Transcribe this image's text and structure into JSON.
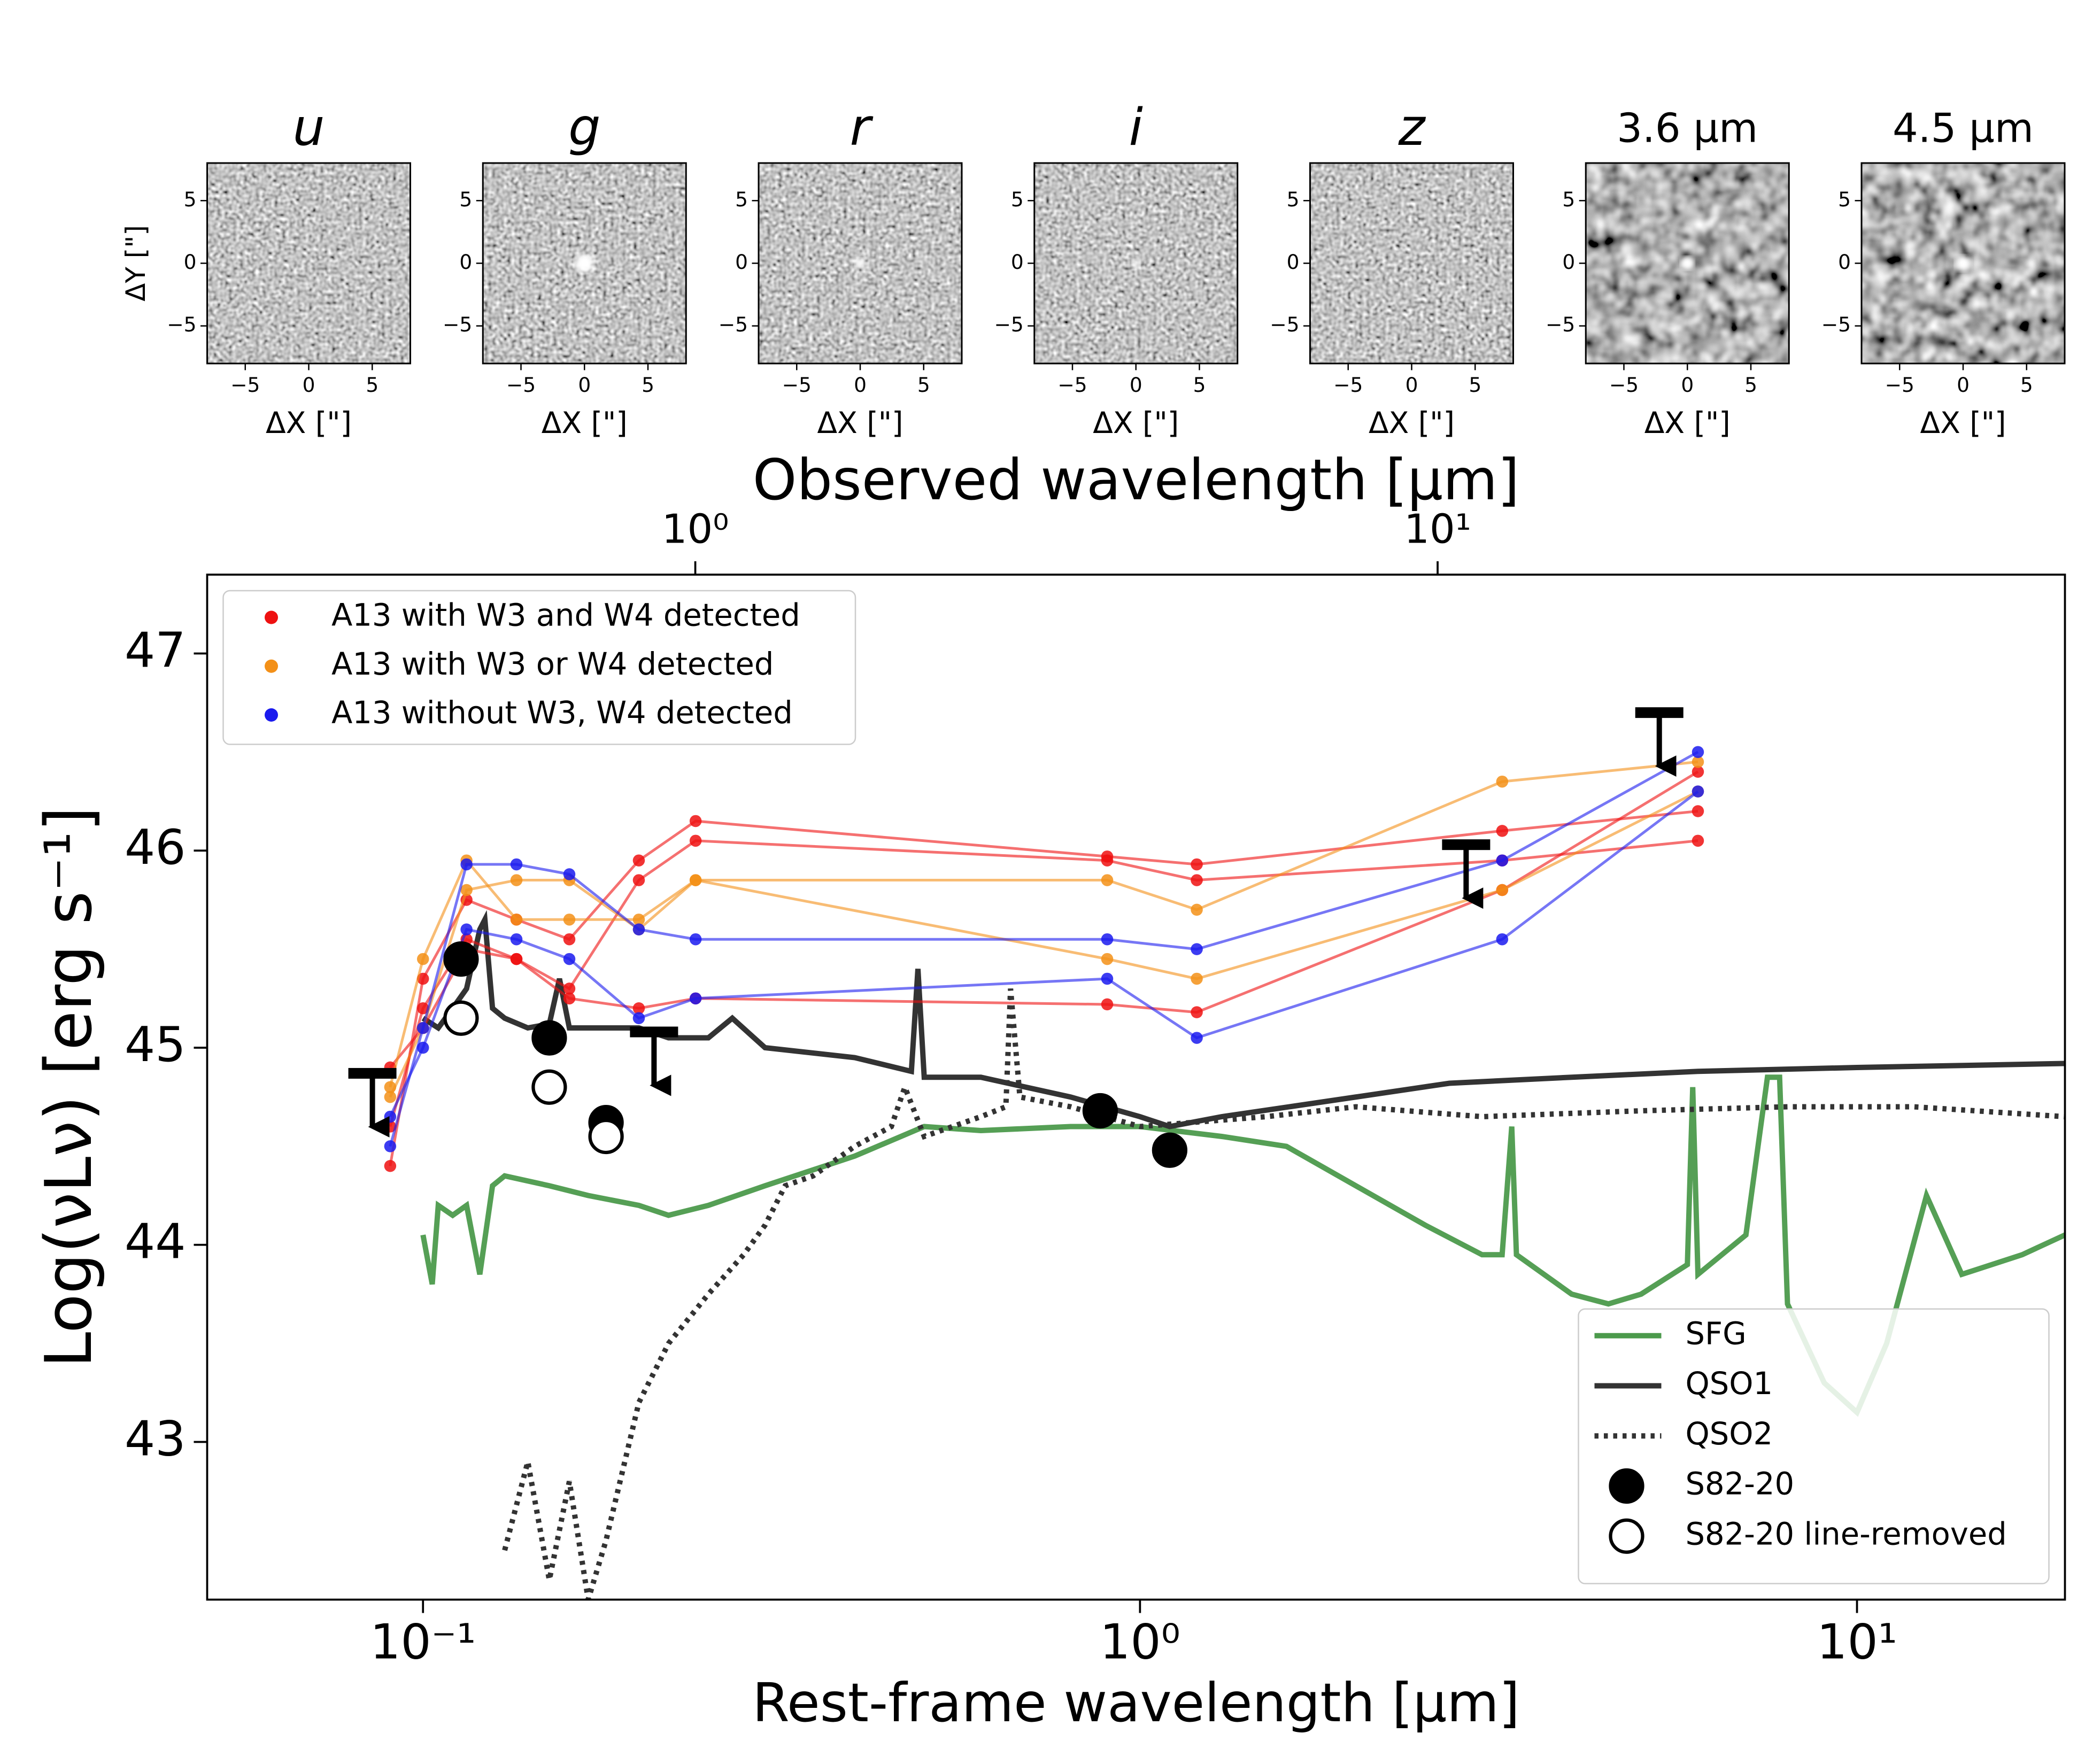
{
  "cutouts": {
    "titles": [
      "u",
      "g",
      "r",
      "i",
      "z",
      "3.6 μm",
      "4.5 μm"
    ],
    "xlabel": "ΔX [\"]",
    "ylabel": "ΔY [\"]",
    "xlim": [
      -8,
      8
    ],
    "ylim": [
      -8,
      8
    ],
    "xticks": [
      {
        "value": -5,
        "label": "−5"
      },
      0,
      5
    ],
    "yticks": [
      {
        "value": -5,
        "label": "−5"
      },
      0,
      5
    ]
  },
  "chart_data": {
    "type": "line",
    "xscale": "log",
    "xlabel": "Rest-frame wavelength [μm]",
    "x2label": "Observed wavelength [μm]",
    "ylabel": "Log(νLν) [erg s⁻¹]",
    "xlim": [
      0.05,
      19.5
    ],
    "x2lim": [
      0.22,
      70
    ],
    "ylim": [
      42.2,
      47.4
    ],
    "xticks": [
      {
        "value": 0.1,
        "label": "10⁻¹"
      },
      {
        "value": 1,
        "label": "10⁰"
      },
      {
        "value": 10,
        "label": "10¹"
      }
    ],
    "x2ticks": [
      {
        "value": 1,
        "label": "10⁰"
      },
      {
        "value": 10,
        "label": "10¹"
      }
    ],
    "yticks": [
      43,
      44,
      45,
      46,
      47
    ],
    "legend": "upper left",
    "model_legend": "lower right",
    "group_x": [
      0.09,
      0.1,
      0.115,
      0.135,
      0.16,
      0.2,
      0.24,
      0.9,
      1.2,
      3.2,
      6
    ],
    "groups": [
      {
        "name": "A13 with W3 and W4 detected",
        "color": "#ee1111",
        "objects": [
          {
            "values": [
              44.4,
              45.35,
              45.75,
              45.65,
              45.55,
              45.95,
              46.15,
              45.97,
              45.93,
              46.1,
              46.2
            ]
          },
          {
            "values": [
              44.6,
              45.2,
              45.55,
              45.45,
              45.3,
              45.85,
              46.05,
              45.95,
              45.85,
              45.95,
              46.05
            ]
          },
          {
            "values": [
              44.9,
              45.1,
              45.5,
              45.45,
              45.25,
              45.2,
              45.25,
              45.22,
              45.18,
              45.8,
              46.4
            ]
          }
        ]
      },
      {
        "name": "A13 with W3 or W4 detected",
        "color": "#f39018",
        "objects": [
          {
            "values": [
              44.8,
              45.45,
              45.95,
              45.65,
              45.65,
              45.65,
              45.85,
              45.85,
              45.7,
              46.35,
              46.45
            ]
          },
          {
            "values": [
              44.75,
              45.1,
              45.8,
              45.85,
              45.85,
              45.6,
              45.85,
              45.45,
              45.35,
              45.8,
              46.3
            ]
          }
        ]
      },
      {
        "name": "A13 without W3, W4 detected",
        "color": "#1a1aee",
        "objects": [
          {
            "values": [
              44.5,
              45.1,
              45.93,
              45.93,
              45.88,
              45.6,
              45.55,
              45.55,
              45.5,
              45.95,
              46.5
            ]
          },
          {
            "values": [
              44.65,
              45.0,
              45.6,
              45.55,
              45.45,
              45.15,
              45.25,
              45.35,
              45.05,
              45.55,
              46.3
            ]
          }
        ]
      }
    ],
    "series": [
      {
        "name": "SFG",
        "color": "#4c9a4c",
        "style": "solid",
        "x": [
          0.1,
          0.103,
          0.105,
          0.11,
          0.115,
          0.12,
          0.125,
          0.13,
          0.15,
          0.17,
          0.2,
          0.22,
          0.25,
          0.3,
          0.4,
          0.5,
          0.6,
          0.8,
          1.0,
          1.3,
          1.6,
          2.0,
          2.5,
          3.0,
          3.2,
          3.3,
          3.35,
          4,
          4.5,
          5,
          5.8,
          5.9,
          6.0,
          7,
          7.5,
          7.8,
          8.0,
          9,
          10,
          11,
          12.5,
          14,
          17,
          19.5
        ],
        "y": [
          44.05,
          43.8,
          44.2,
          44.15,
          44.2,
          43.85,
          44.3,
          44.35,
          44.3,
          44.25,
          44.2,
          44.15,
          44.2,
          44.3,
          44.45,
          44.6,
          44.58,
          44.6,
          44.6,
          44.55,
          44.5,
          44.3,
          44.1,
          43.95,
          43.95,
          44.6,
          43.95,
          43.75,
          43.7,
          43.75,
          43.9,
          44.8,
          43.85,
          44.05,
          44.85,
          44.85,
          43.7,
          43.3,
          43.15,
          43.5,
          44.25,
          43.85,
          43.95,
          44.05
        ]
      },
      {
        "name": "QSO1",
        "color": "#333333",
        "style": "solid",
        "x": [
          0.1,
          0.105,
          0.11,
          0.115,
          0.12,
          0.122,
          0.125,
          0.13,
          0.14,
          0.15,
          0.155,
          0.16,
          0.2,
          0.22,
          0.25,
          0.27,
          0.3,
          0.4,
          0.48,
          0.49,
          0.5,
          0.6,
          0.8,
          1.0,
          1.1,
          1.3,
          2,
          2.7,
          4,
          6,
          10,
          19.5
        ],
        "y": [
          45.15,
          45.1,
          45.2,
          45.3,
          45.6,
          45.65,
          45.2,
          45.15,
          45.1,
          45.12,
          45.35,
          45.1,
          45.1,
          45.05,
          45.05,
          45.15,
          45.0,
          44.95,
          44.88,
          45.4,
          44.85,
          44.85,
          44.75,
          44.65,
          44.6,
          44.65,
          44.75,
          44.82,
          44.85,
          44.88,
          44.9,
          44.92
        ]
      },
      {
        "name": "QSO2",
        "color": "#333333",
        "style": "dotted",
        "x": [
          0.13,
          0.14,
          0.15,
          0.16,
          0.17,
          0.18,
          0.2,
          0.22,
          0.25,
          0.28,
          0.3,
          0.32,
          0.35,
          0.4,
          0.45,
          0.47,
          0.5,
          0.6,
          0.65,
          0.66,
          0.68,
          0.8,
          1.0,
          1.5,
          2,
          3,
          5,
          8,
          12,
          19.5
        ],
        "y": [
          42.45,
          42.9,
          42.3,
          42.8,
          42.2,
          42.5,
          43.2,
          43.5,
          43.75,
          43.95,
          44.1,
          44.3,
          44.35,
          44.5,
          44.6,
          44.8,
          44.55,
          44.65,
          44.7,
          45.3,
          44.75,
          44.7,
          44.6,
          44.65,
          44.7,
          44.65,
          44.68,
          44.7,
          44.7,
          44.65
        ]
      }
    ],
    "points": [
      {
        "name": "S82-20",
        "fill": "#000000",
        "x": [
          0.113,
          0.15,
          0.18,
          0.88,
          1.1
        ],
        "y": [
          45.45,
          45.05,
          44.62,
          44.68,
          44.48
        ]
      },
      {
        "name": "S82-20 line-removed",
        "fill": "#ffffff",
        "x": [
          0.113,
          0.15,
          0.18
        ],
        "y": [
          45.15,
          44.8,
          44.55
        ]
      }
    ],
    "upper_limits": {
      "color": "#000000",
      "x": [
        0.085,
        0.21,
        2.85,
        5.3
      ],
      "y": [
        44.87,
        45.08,
        46.03,
        46.7
      ]
    }
  }
}
